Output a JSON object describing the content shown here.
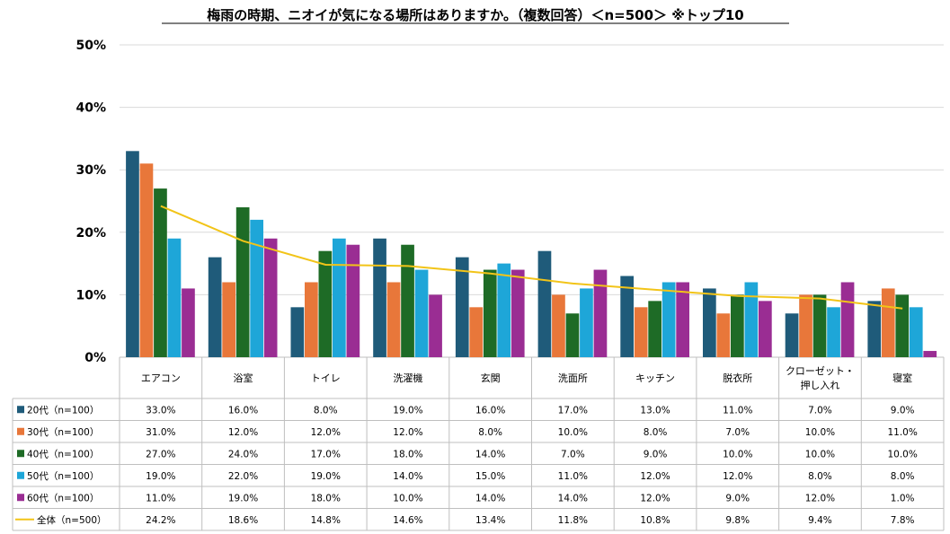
{
  "chart_data": {
    "type": "bar",
    "title": "梅雨の時期、ニオイが気になる場所はありますか。（複数回答）＜n=500＞ ※トップ10",
    "categories": [
      "エアコン",
      "浴室",
      "トイレ",
      "洗濯機",
      "玄関",
      "洗面所",
      "キッチン",
      "脱衣所",
      "クローゼット・押し入れ",
      "寝室"
    ],
    "category_lines": [
      [
        "エアコン"
      ],
      [
        "浴室"
      ],
      [
        "トイレ"
      ],
      [
        "洗濯機"
      ],
      [
        "玄関"
      ],
      [
        "洗面所"
      ],
      [
        "キッチン"
      ],
      [
        "脱衣所"
      ],
      [
        "クローゼット・",
        "押し入れ"
      ],
      [
        "寝室"
      ]
    ],
    "yticks": [
      "0%",
      "10%",
      "20%",
      "30%",
      "40%",
      "50%"
    ],
    "ylim": [
      0,
      50
    ],
    "grid": true,
    "legend_placement": "table-left",
    "series": [
      {
        "name": "20代（n=100）",
        "color": "#1f5b7a",
        "values": [
          33.0,
          16.0,
          8.0,
          19.0,
          16.0,
          17.0,
          13.0,
          11.0,
          7.0,
          9.0
        ],
        "labels": [
          "33.0%",
          "16.0%",
          "8.0%",
          "19.0%",
          "16.0%",
          "17.0%",
          "13.0%",
          "11.0%",
          "7.0%",
          "9.0%"
        ]
      },
      {
        "name": "30代（n=100）",
        "color": "#e8773a",
        "values": [
          31.0,
          12.0,
          12.0,
          12.0,
          8.0,
          10.0,
          8.0,
          7.0,
          10.0,
          11.0
        ],
        "labels": [
          "31.0%",
          "12.0%",
          "12.0%",
          "12.0%",
          "8.0%",
          "10.0%",
          "8.0%",
          "7.0%",
          "10.0%",
          "11.0%"
        ]
      },
      {
        "name": "40代（n=100）",
        "color": "#1e6b26",
        "values": [
          27.0,
          24.0,
          17.0,
          18.0,
          14.0,
          7.0,
          9.0,
          10.0,
          10.0,
          10.0
        ],
        "labels": [
          "27.0%",
          "24.0%",
          "17.0%",
          "18.0%",
          "14.0%",
          "7.0%",
          "9.0%",
          "10.0%",
          "10.0%",
          "10.0%"
        ]
      },
      {
        "name": "50代（n=100）",
        "color": "#1ea6d8",
        "values": [
          19.0,
          22.0,
          19.0,
          14.0,
          15.0,
          11.0,
          12.0,
          12.0,
          8.0,
          8.0
        ],
        "labels": [
          "19.0%",
          "22.0%",
          "19.0%",
          "14.0%",
          "15.0%",
          "11.0%",
          "12.0%",
          "12.0%",
          "8.0%",
          "8.0%"
        ]
      },
      {
        "name": "60代（n=100）",
        "color": "#9a2d93",
        "values": [
          11.0,
          19.0,
          18.0,
          10.0,
          14.0,
          14.0,
          12.0,
          9.0,
          12.0,
          1.0
        ],
        "labels": [
          "11.0%",
          "19.0%",
          "18.0%",
          "10.0%",
          "14.0%",
          "14.0%",
          "12.0%",
          "9.0%",
          "12.0%",
          "1.0%"
        ]
      }
    ],
    "line_series": {
      "name": "全体（n=500）",
      "color": "#f2c418",
      "values": [
        24.2,
        18.6,
        14.8,
        14.6,
        13.4,
        11.8,
        10.8,
        9.8,
        9.4,
        7.8
      ],
      "labels": [
        "24.2%",
        "18.6%",
        "14.8%",
        "14.6%",
        "13.4%",
        "11.8%",
        "10.8%",
        "9.8%",
        "9.4%",
        "7.8%"
      ]
    }
  }
}
